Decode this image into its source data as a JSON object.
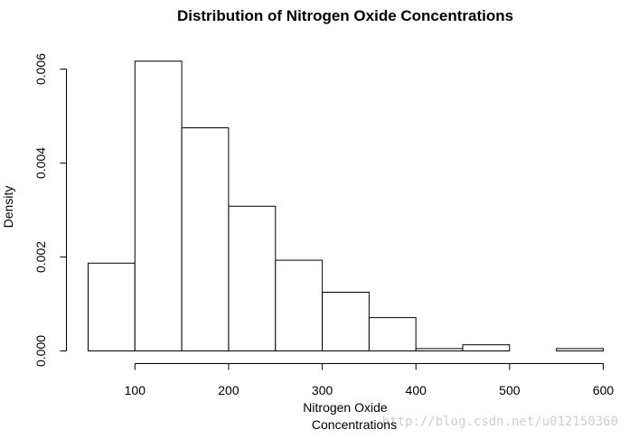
{
  "chart_data": {
    "type": "bar",
    "title": "Distribution of Nitrogen Oxide Concentrations",
    "xlabel_line1": "Nitrogen Oxide",
    "xlabel_line2": "Concentrations",
    "ylabel": "Density",
    "bin_edges": [
      50,
      100,
      150,
      200,
      250,
      300,
      350,
      400,
      450,
      500,
      550,
      600
    ],
    "values": [
      0.00187,
      0.00617,
      0.00475,
      0.00308,
      0.00193,
      0.00125,
      0.00071,
      5e-05,
      0.00013,
      0.0,
      5e-05
    ],
    "xlim": [
      50,
      600
    ],
    "ylim": [
      0,
      0.006
    ],
    "x_ticks": [
      100,
      200,
      300,
      400,
      500,
      600
    ],
    "x_tick_labels": [
      "100",
      "200",
      "300",
      "400",
      "500",
      "600"
    ],
    "y_ticks": [
      0,
      0.002,
      0.004,
      0.006
    ],
    "y_tick_labels": [
      "0.000",
      "0.002",
      "0.004",
      "0.006"
    ],
    "grid": false
  },
  "watermark": "http://blog.csdn.net/u012150360"
}
